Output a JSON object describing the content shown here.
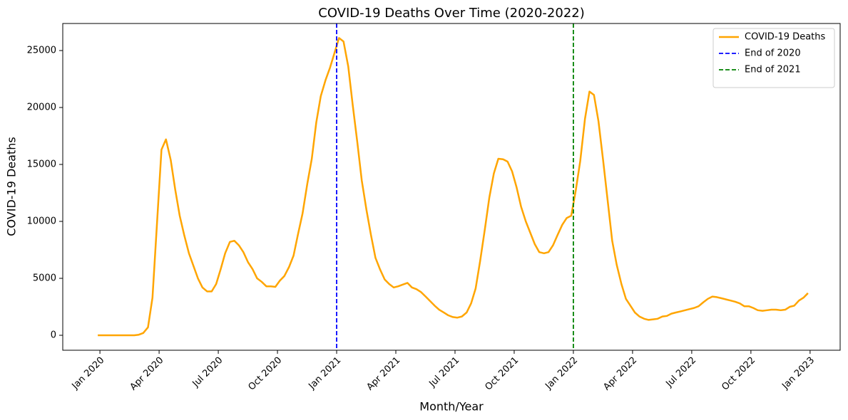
{
  "chart_data": {
    "type": "line",
    "title": "COVID-19 Deaths Over Time (2020-2022)",
    "xlabel": "Month/Year",
    "ylabel": "COVID-19 Deaths",
    "xlim": [
      2019.843,
      2023.127
    ],
    "ylim": [
      -1312,
      27375
    ],
    "xticks": [
      {
        "value": 2020.0,
        "label": "Jan 2020"
      },
      {
        "value": 2020.25,
        "label": "Apr 2020"
      },
      {
        "value": 2020.5,
        "label": "Jul 2020"
      },
      {
        "value": 2020.75,
        "label": "Oct 2020"
      },
      {
        "value": 2021.0,
        "label": "Jan 2021"
      },
      {
        "value": 2021.25,
        "label": "Apr 2021"
      },
      {
        "value": 2021.5,
        "label": "Jul 2021"
      },
      {
        "value": 2021.75,
        "label": "Oct 2021"
      },
      {
        "value": 2022.0,
        "label": "Jan 2022"
      },
      {
        "value": 2022.25,
        "label": "Apr 2022"
      },
      {
        "value": 2022.5,
        "label": "Jul 2022"
      },
      {
        "value": 2022.75,
        "label": "Oct 2022"
      },
      {
        "value": 2023.0,
        "label": "Jan 2023"
      }
    ],
    "yticks": [
      0,
      5000,
      10000,
      15000,
      20000,
      25000
    ],
    "legend": "upper right",
    "x": [
      2019.991,
      2020.01,
      2020.029,
      2020.049,
      2020.068,
      2020.087,
      2020.106,
      2020.126,
      2020.145,
      2020.164,
      2020.183,
      2020.203,
      2020.222,
      2020.241,
      2020.26,
      2020.279,
      2020.299,
      2020.318,
      2020.337,
      2020.356,
      2020.376,
      2020.395,
      2020.414,
      2020.433,
      2020.453,
      2020.472,
      2020.491,
      2020.51,
      2020.529,
      2020.549,
      2020.568,
      2020.587,
      2020.606,
      2020.626,
      2020.645,
      2020.664,
      2020.683,
      2020.703,
      2020.722,
      2020.741,
      2020.76,
      2020.779,
      2020.799,
      2020.818,
      2020.837,
      2020.856,
      2020.876,
      2020.895,
      2020.914,
      2020.933,
      2020.953,
      2020.972,
      2020.991,
      2021.01,
      2021.029,
      2021.049,
      2021.068,
      2021.087,
      2021.106,
      2021.126,
      2021.145,
      2021.164,
      2021.183,
      2021.203,
      2021.222,
      2021.241,
      2021.26,
      2021.279,
      2021.299,
      2021.318,
      2021.337,
      2021.356,
      2021.376,
      2021.395,
      2021.414,
      2021.433,
      2021.453,
      2021.472,
      2021.491,
      2021.51,
      2021.529,
      2021.549,
      2021.568,
      2021.587,
      2021.606,
      2021.626,
      2021.645,
      2021.664,
      2021.683,
      2021.703,
      2021.722,
      2021.741,
      2021.76,
      2021.779,
      2021.799,
      2021.818,
      2021.837,
      2021.856,
      2021.876,
      2021.895,
      2021.914,
      2021.933,
      2021.953,
      2021.972,
      2021.991,
      2022.01,
      2022.029,
      2022.049,
      2022.068,
      2022.087,
      2022.106,
      2022.126,
      2022.145,
      2022.164,
      2022.183,
      2022.203,
      2022.222,
      2022.241,
      2022.26,
      2022.279,
      2022.299,
      2022.318,
      2022.337,
      2022.356,
      2022.376,
      2022.395,
      2022.414,
      2022.433,
      2022.453,
      2022.472,
      2022.491,
      2022.51,
      2022.529,
      2022.549,
      2022.568,
      2022.587,
      2022.606,
      2022.626,
      2022.645,
      2022.664,
      2022.683,
      2022.703,
      2022.722,
      2022.741,
      2022.76,
      2022.779,
      2022.799,
      2022.818,
      2022.837,
      2022.856,
      2022.876,
      2022.895,
      2022.914,
      2022.933,
      2022.953,
      2022.972,
      2022.991
    ],
    "series": [
      {
        "name": "COVID-19 Deaths",
        "color": "orange",
        "values": [
          0,
          0,
          0,
          0,
          0,
          0,
          0,
          0,
          0,
          50,
          200,
          700,
          3300,
          9800,
          16300,
          17200,
          15400,
          12800,
          10500,
          8800,
          7200,
          6100,
          5000,
          4200,
          3850,
          3850,
          4500,
          5800,
          7200,
          8200,
          8300,
          7900,
          7300,
          6400,
          5800,
          5000,
          4700,
          4300,
          4300,
          4250,
          4800,
          5200,
          6000,
          7000,
          8900,
          10700,
          13300,
          15500,
          18700,
          21000,
          22400,
          23500,
          24800,
          26100,
          25800,
          23600,
          20200,
          17000,
          13600,
          11000,
          8800,
          6800,
          5800,
          4900,
          4500,
          4200,
          4300,
          4450,
          4600,
          4200,
          4050,
          3800,
          3400,
          3000,
          2600,
          2250,
          2000,
          1750,
          1600,
          1550,
          1650,
          2000,
          2800,
          4100,
          6500,
          9300,
          12100,
          14200,
          15500,
          15450,
          15250,
          14400,
          13000,
          11300,
          10000,
          9000,
          8000,
          7300,
          7200,
          7300,
          7900,
          8800,
          9700,
          10300,
          10500,
          12700,
          15300,
          19000,
          21400,
          21100,
          18800,
          15300,
          11800,
          8300,
          6200,
          4500,
          3200,
          2600,
          2000,
          1650,
          1450,
          1350,
          1400,
          1450,
          1650,
          1700,
          1900,
          2000,
          2100,
          2200,
          2300,
          2400,
          2550,
          2900,
          3200,
          3400,
          3350,
          3250,
          3150,
          3050,
          2950,
          2800,
          2550,
          2550,
          2400,
          2200,
          2150,
          2200,
          2250,
          2250,
          2200,
          2250,
          2500,
          2600,
          3050,
          3300,
          3700
        ]
      }
    ],
    "vlines": [
      {
        "name": "End of 2020",
        "x": 2021.0,
        "color": "blue"
      },
      {
        "name": "End of 2021",
        "x": 2022.0,
        "color": "green"
      }
    ]
  }
}
